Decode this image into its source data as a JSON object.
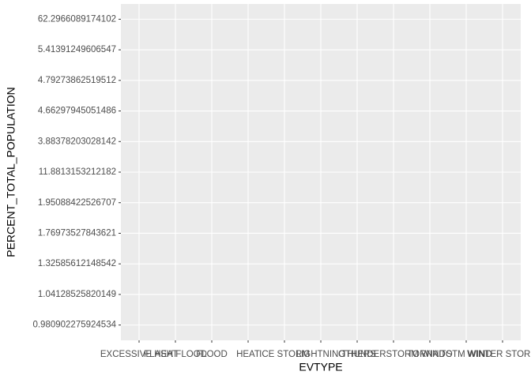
{
  "chart_data": {
    "type": "scatter",
    "x_label": "EVTYPE",
    "y_label": "PERCENT_TOTAL_POPULATION",
    "categories": [
      "EXCESSIVE HEAT",
      "FLASH FLOOD",
      "FLOOD",
      "HEAT",
      "ICE STORM",
      "LIGHTNING",
      "OTHERS",
      "THUNDERSTORM WIND",
      "TORNADO",
      "TSTM WIND",
      "WINTER STORM"
    ],
    "y_categories": [
      "0.980902275924534",
      "1.04128525820149",
      "1.32585612148542",
      "1.76973527843621",
      "1.95088422526707",
      "11.8813153212182",
      "3.88378203028142",
      "4.66297945051486",
      "4.79273862519512",
      "5.41391249606547",
      "62.2966089174102"
    ],
    "grid": true
  }
}
